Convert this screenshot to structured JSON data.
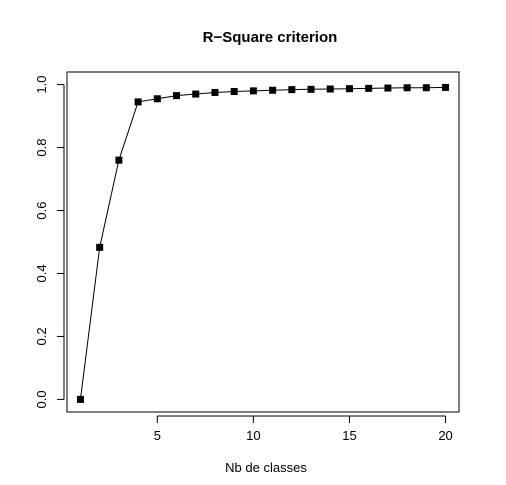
{
  "chart_data": {
    "type": "line",
    "title": "R−Square criterion",
    "xlabel": "Nb de classes",
    "ylabel": "",
    "xlim": [
      0.3,
      20.7
    ],
    "ylim": [
      -0.04,
      1.04
    ],
    "x_ticks": [
      5,
      10,
      15,
      20
    ],
    "x_tick_labels": [
      "5",
      "10",
      "15",
      "20"
    ],
    "y_ticks": [
      0.0,
      0.2,
      0.4,
      0.6,
      0.8,
      1.0
    ],
    "y_tick_labels": [
      "0.0",
      "0.2",
      "0.4",
      "0.6",
      "0.8",
      "1.0"
    ],
    "grid": false,
    "marker": "square",
    "line_color": "#000000",
    "marker_color": "#000000",
    "series": [
      {
        "x": [
          1,
          2,
          3,
          4,
          5,
          6,
          7,
          8,
          9,
          10,
          11,
          12,
          13,
          14,
          15,
          16,
          17,
          18,
          19,
          20
        ],
        "values": [
          0.0,
          0.483,
          0.76,
          0.945,
          0.955,
          0.965,
          0.97,
          0.975,
          0.978,
          0.98,
          0.982,
          0.984,
          0.985,
          0.986,
          0.987,
          0.988,
          0.989,
          0.99,
          0.99,
          0.991
        ]
      }
    ]
  }
}
